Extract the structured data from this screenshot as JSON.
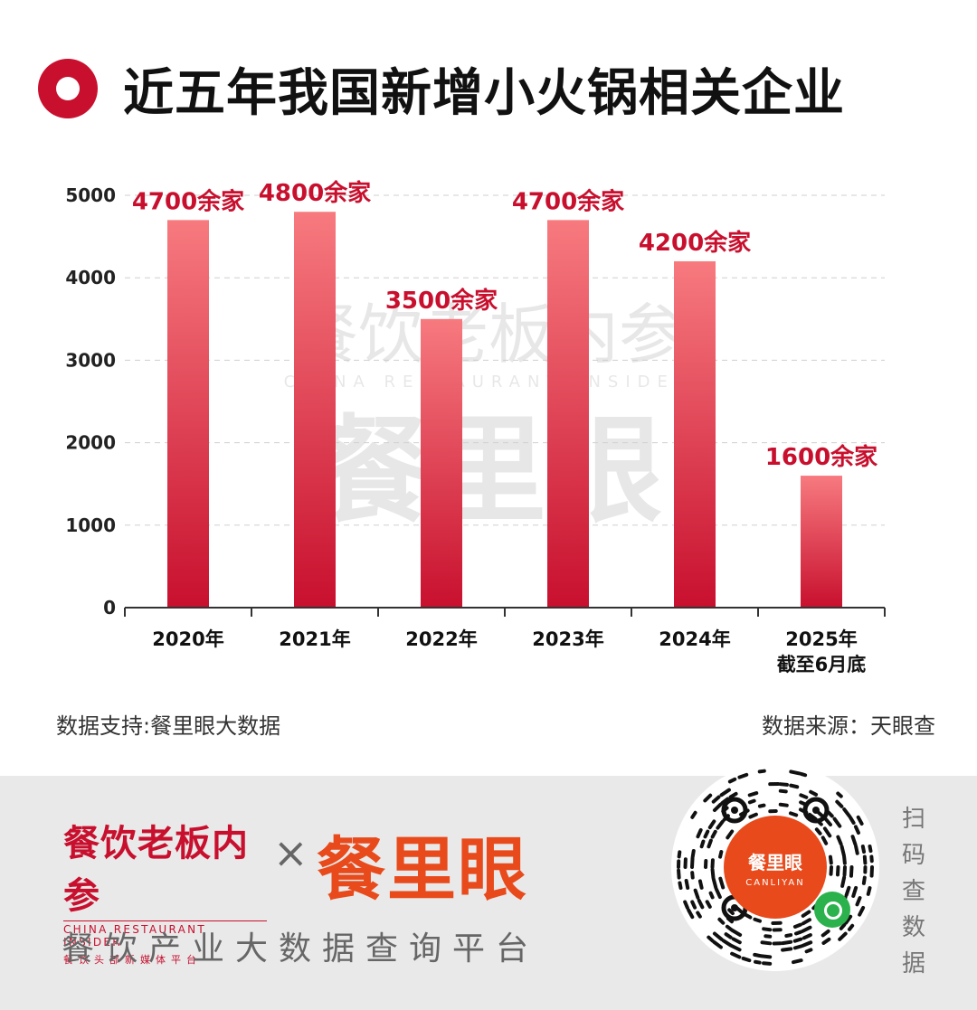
{
  "header": {
    "title": "近五年我国新增小火锅相关企业"
  },
  "watermark": {
    "cn": "餐饮老板内参",
    "en": "CHINA RESTAURANT INSIDER",
    "brand": "餐里眼"
  },
  "footnotes": {
    "support": "数据支持:餐里眼大数据",
    "source": "数据来源：天眼查"
  },
  "footer": {
    "brand1_name": "餐饮老板内参",
    "brand1_en": "CHINA RESTAURANT INSIDER",
    "brand1_sub": "餐饮头部新媒体平台",
    "cross": "×",
    "brand2_name": "餐里眼",
    "platform": "餐饮产业大数据查询平台",
    "qr_center": "餐里眼",
    "qr_center_en": "CANLIYAN",
    "scan": "扫码查数据"
  },
  "colors": {
    "accent": "#c8102e",
    "bar_top": "#f77a7f",
    "bar_bottom": "#c8102e",
    "label": "#c8102e"
  },
  "chart_data": {
    "type": "bar",
    "categories": [
      "2020年",
      "2021年",
      "2022年",
      "2023年",
      "2024年",
      "2025年\n截至6月底"
    ],
    "values": [
      4700,
      4800,
      3500,
      4700,
      4200,
      1600
    ],
    "data_labels": [
      "4700余家",
      "4800余家",
      "3500余家",
      "4700余家",
      "4200余家",
      "1600余家"
    ],
    "ylim": [
      0,
      5000
    ],
    "yticks": [
      0,
      1000,
      2000,
      3000,
      4000,
      5000
    ],
    "grid": true,
    "legend": "none",
    "title": "近五年我国新增小火锅相关企业",
    "xlabel": "",
    "ylabel": ""
  }
}
